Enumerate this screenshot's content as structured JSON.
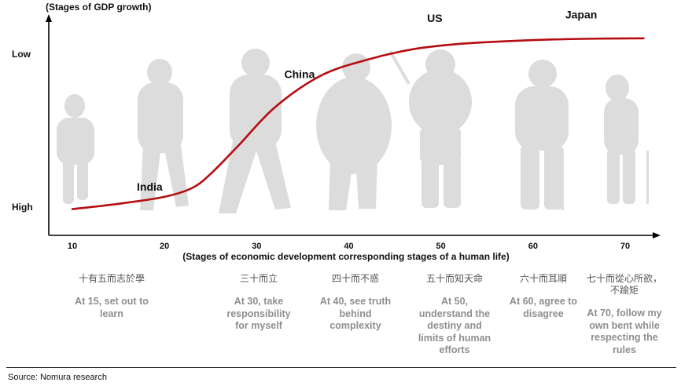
{
  "chart_data": {
    "type": "line",
    "y_axis_title": "(Stages of GDP growth)",
    "x_axis_title": "(Stages of economic development corresponding stages of a human life)",
    "y_labels": {
      "low": "Low",
      "high": "High"
    },
    "x_ticks": [
      "10",
      "20",
      "30",
      "40",
      "50",
      "60",
      "70"
    ],
    "xlim": [
      6,
      76
    ],
    "curve": {
      "x": [
        10,
        15,
        20,
        23,
        25,
        28,
        32,
        37,
        42,
        47,
        52,
        57,
        62,
        67,
        72
      ],
      "y": [
        0.02,
        0.05,
        0.09,
        0.14,
        0.22,
        0.38,
        0.6,
        0.78,
        0.87,
        0.93,
        0.96,
        0.975,
        0.985,
        0.99,
        0.992
      ]
    },
    "annotations": [
      {
        "label": "India",
        "x": 17,
        "y": 0.09
      },
      {
        "label": "China",
        "x": 33,
        "y": 0.73
      },
      {
        "label": "US",
        "x": 48.5,
        "y": 1.05
      },
      {
        "label": "Japan",
        "x": 63.5,
        "y": 1.07
      }
    ],
    "life_stages": [
      {
        "chinese": "十有五而志於學",
        "english": [
          "At 15, set out to",
          "learn"
        ]
      },
      {
        "chinese": "三十而立",
        "english": [
          "At 30, take",
          "responsibility",
          "for myself"
        ]
      },
      {
        "chinese": "四十而不惑",
        "english": [
          "At 40, see truth",
          "behind",
          "complexity"
        ]
      },
      {
        "chinese": "五十而知天命",
        "english": [
          "At 50,",
          "understand the",
          "destiny and",
          "limits of human",
          "efforts"
        ]
      },
      {
        "chinese": "六十而耳順",
        "english": [
          "At 60, agree to",
          "disagree"
        ]
      },
      {
        "chinese": [
          "七十而從心所欲，",
          "不踰矩"
        ],
        "english": [
          "At 70, follow my",
          "own bent while",
          "respecting the",
          "rules"
        ]
      }
    ],
    "line_color": "#b50d12",
    "axis_color": "#000000",
    "figure_color": "#dcdcdc"
  },
  "source": "Source: Nomura research"
}
